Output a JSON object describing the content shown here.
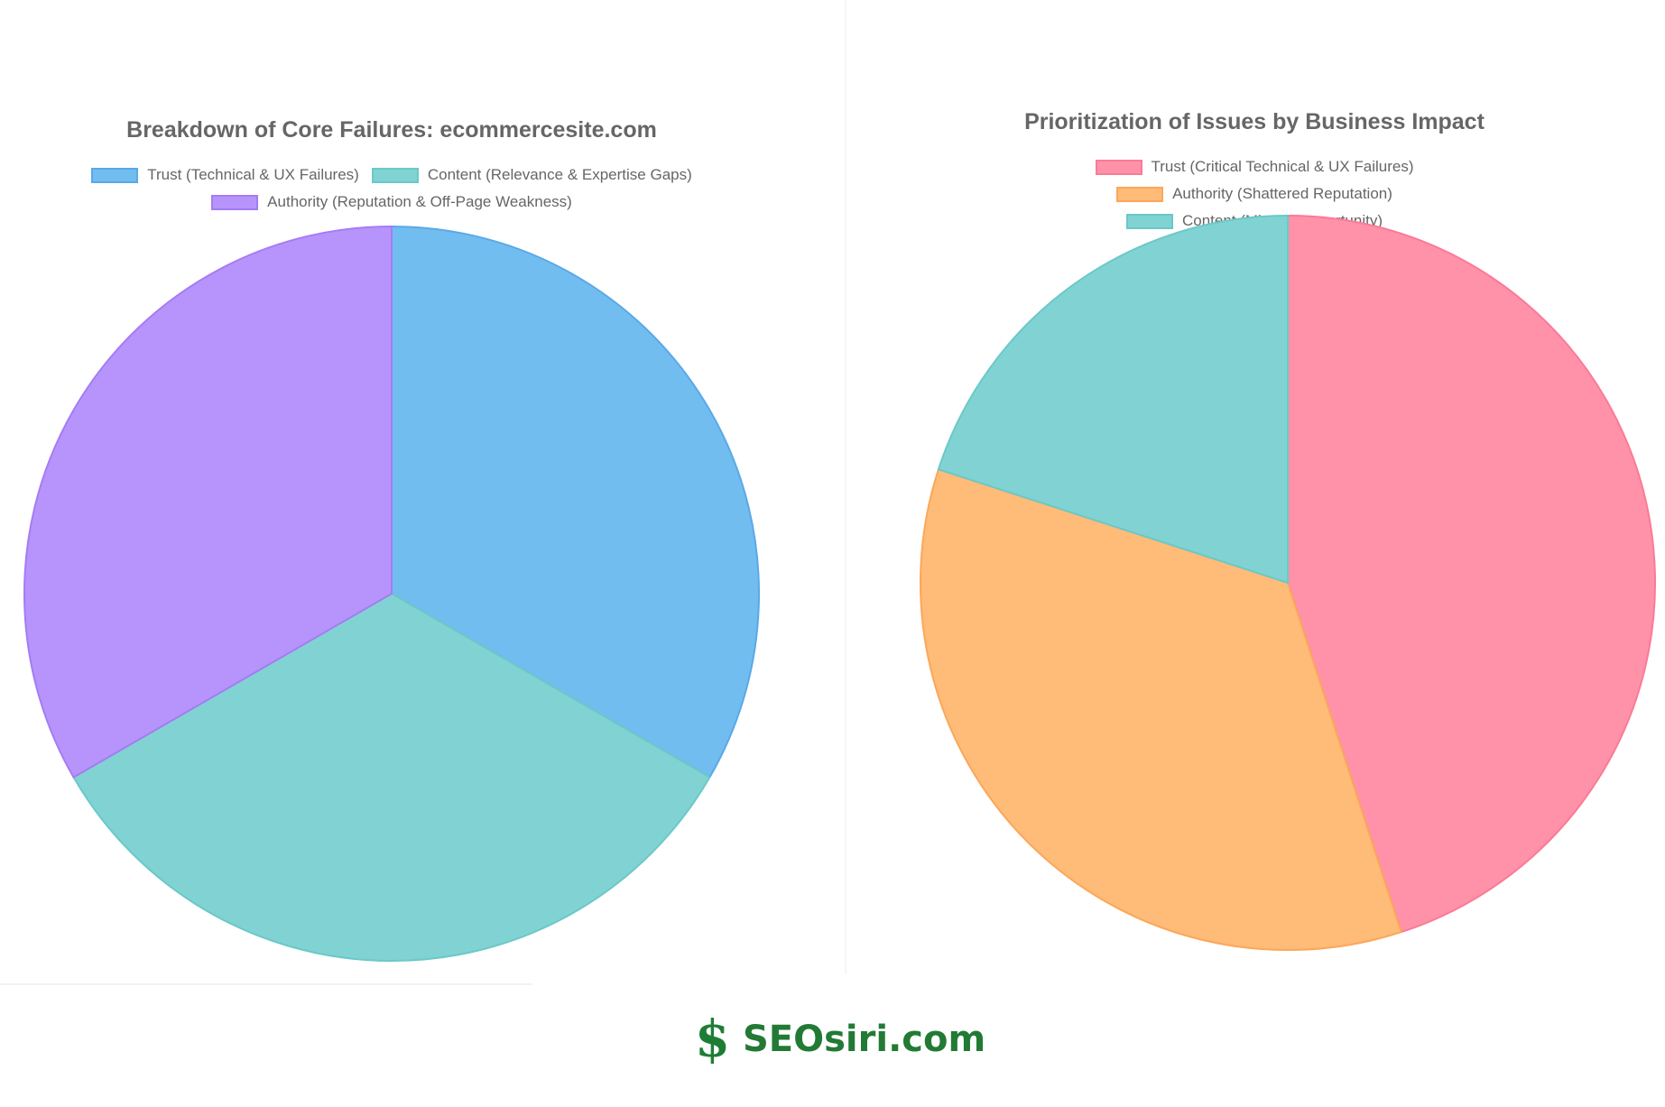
{
  "chart_data": [
    {
      "type": "pie",
      "title": "Breakdown of Core Failures: ecommercesite.com",
      "legend_position": "top",
      "categories": [
        "Trust (Technical & UX Failures)",
        "Content (Relevance & Expertise Gaps)",
        "Authority (Reputation & Off-Page Weakness)"
      ],
      "values": [
        33.3,
        33.3,
        33.3
      ],
      "colors": [
        "#72bdef",
        "#81d3d3",
        "#b794fb"
      ],
      "border_colors": [
        "#5aa9e8",
        "#6cc8c8",
        "#a47cf4"
      ]
    },
    {
      "type": "pie",
      "title": "Prioritization of Issues by Business Impact",
      "legend_position": "top",
      "categories": [
        "Trust (Critical Technical & UX Failures)",
        "Authority (Shattered Reputation)",
        "Content (Missed Opportunity)"
      ],
      "values": [
        45,
        35,
        20
      ],
      "colors": [
        "#ff92a9",
        "#ffbb78",
        "#81d3d3"
      ],
      "border_colors": [
        "#fb7a96",
        "#fba758",
        "#6cc8c8"
      ]
    }
  ],
  "brand": {
    "icon": "dollar-s-icon",
    "symbol": "$",
    "text": "SEOsiri.com",
    "color": "#227a34"
  }
}
